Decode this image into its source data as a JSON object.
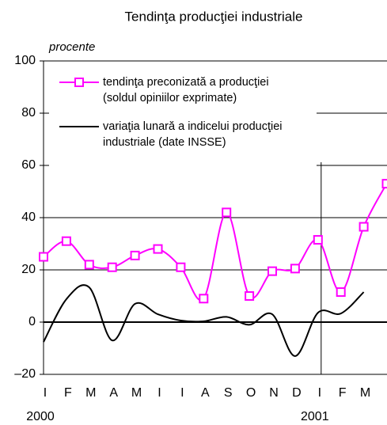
{
  "chart_data": {
    "type": "line",
    "title": "Tendinţa producţiei industriale",
    "y_label": "procente",
    "categories": [
      "I",
      "F",
      "M",
      "A",
      "M",
      "I",
      "I",
      "A",
      "S",
      "O",
      "N",
      "D",
      "I",
      "F",
      "M",
      null
    ],
    "years": [
      "2000",
      "2001"
    ],
    "series": [
      {
        "name": "tendinţa preconizată a producţiei\n(soldul opiniilor exprimate)",
        "color": "#ff00ff",
        "marker": "square",
        "values": [
          25,
          31,
          22,
          21,
          25.5,
          28,
          21,
          9,
          42,
          10,
          19.5,
          20.5,
          31.5,
          11.5,
          36.5,
          53
        ]
      },
      {
        "name": "variaţia lunară a indicelui producţiei\nindustriale (date INSSE)",
        "color": "#000000",
        "values": [
          -7.6,
          8.8,
          13.3,
          -7,
          7,
          3,
          0.6,
          0.3,
          2,
          -1,
          3,
          -13,
          3.6,
          3.3,
          11.5,
          null
        ]
      }
    ],
    "ylim": [
      -20,
      100
    ],
    "yticks": [
      {
        "value": -20,
        "label": "–20"
      },
      0,
      20,
      40,
      60,
      80,
      100
    ],
    "grid": true
  }
}
